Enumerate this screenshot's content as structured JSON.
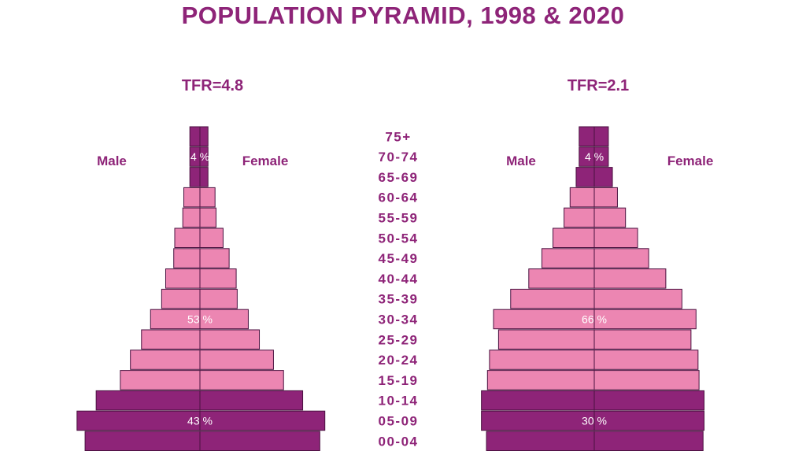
{
  "title": "POPULATION PYRAMID, 1998 & 2020",
  "chart_data": [
    {
      "type": "bar",
      "title": "1998",
      "subtitle": "TFR=4.8",
      "left_label": "Male",
      "right_label": "Female",
      "categories": [
        "75+",
        "70-74",
        "65-69",
        "60-64",
        "55-59",
        "50-54",
        "45-49",
        "40-44",
        "35-39",
        "30-34",
        "25-29",
        "20-24",
        "15-19",
        "10-14",
        "05-09",
        "00-04"
      ],
      "series": [
        {
          "name": "Male",
          "values": [
            1.0,
            1.0,
            1.0,
            1.6,
            1.7,
            2.5,
            2.6,
            3.4,
            3.8,
            4.9,
            5.8,
            6.9,
            7.9,
            10.3,
            12.2,
            11.4
          ]
        },
        {
          "name": "Female",
          "values": [
            0.8,
            0.8,
            0.8,
            1.5,
            1.6,
            2.3,
            2.9,
            3.6,
            3.7,
            4.8,
            5.9,
            7.3,
            8.3,
            10.2,
            12.4,
            11.9
          ]
        }
      ],
      "groups": [
        {
          "label": "4 %",
          "from": "75+",
          "to": "65-69",
          "color": "#8e2478"
        },
        {
          "label": "53 %",
          "from": "60-64",
          "to": "15-19",
          "color": "#ec86b2"
        },
        {
          "label": "43 %",
          "from": "10-14",
          "to": "00-04",
          "color": "#8e2478"
        }
      ],
      "group_label_rows": [
        "70-74",
        "30-34",
        "05-09"
      ]
    },
    {
      "type": "bar",
      "title": "2020",
      "subtitle": "TFR=2.1",
      "left_label": "Male",
      "right_label": "Female",
      "categories": [
        "75+",
        "70-74",
        "65-69",
        "60-64",
        "55-59",
        "50-54",
        "45-49",
        "40-44",
        "35-39",
        "30-34",
        "25-29",
        "20-24",
        "15-19",
        "10-14",
        "05-09",
        "00-04"
      ],
      "series": [
        {
          "name": "Male",
          "values": [
            1.5,
            1.5,
            1.8,
            2.4,
            3.0,
            4.1,
            5.2,
            6.5,
            8.3,
            10.0,
            9.5,
            10.4,
            10.6,
            11.2,
            11.2,
            10.7
          ]
        },
        {
          "name": "Female",
          "values": [
            1.4,
            1.4,
            1.8,
            2.3,
            3.1,
            4.3,
            5.4,
            7.1,
            8.7,
            10.1,
            9.6,
            10.3,
            10.4,
            10.9,
            10.9,
            10.8
          ]
        }
      ],
      "groups": [
        {
          "label": "4 %",
          "from": "75+",
          "to": "65-69",
          "color": "#8e2478"
        },
        {
          "label": "66 %",
          "from": "60-64",
          "to": "15-19",
          "color": "#ec86b2"
        },
        {
          "label": "30 %",
          "from": "10-14",
          "to": "00-04",
          "color": "#8e2478"
        }
      ],
      "group_label_rows": [
        "70-74",
        "30-34",
        "05-09"
      ]
    }
  ]
}
